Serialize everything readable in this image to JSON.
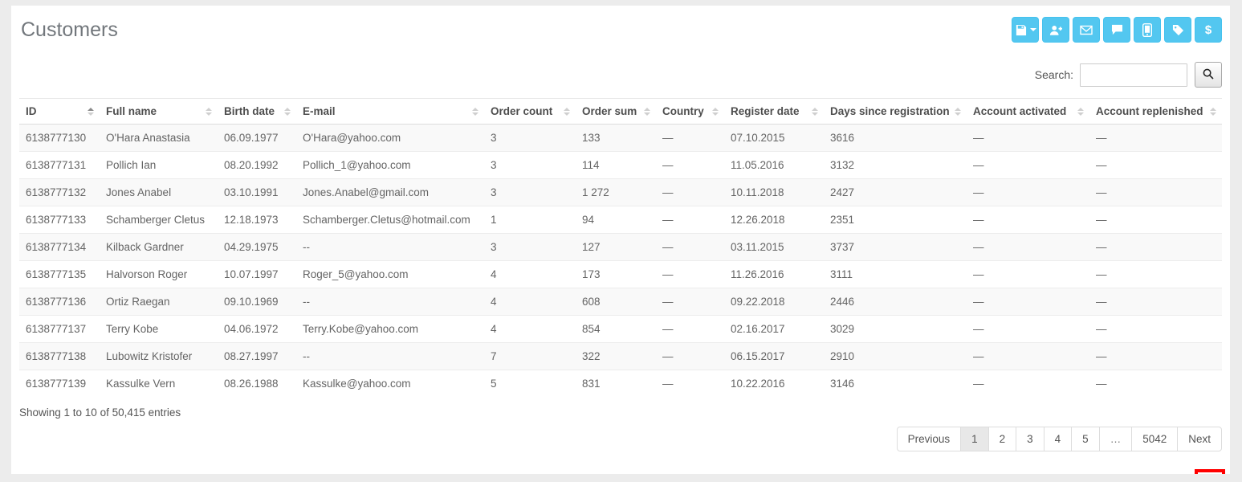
{
  "title": "Customers",
  "toolbar": {
    "accent_color": "#53c7f0",
    "dollar_glyph": "$",
    "buttons": [
      {
        "name": "export-save-button",
        "icon": "floppy-disk-icon",
        "has_caret": true
      },
      {
        "name": "add-user-button",
        "icon": "user-plus-icon"
      },
      {
        "name": "email-button",
        "icon": "envelope-icon"
      },
      {
        "name": "comment-button",
        "icon": "speech-bubble-icon"
      },
      {
        "name": "mobile-button",
        "icon": "mobile-phone-icon"
      },
      {
        "name": "tag-button",
        "icon": "tag-icon"
      },
      {
        "name": "dollar-button",
        "icon": "dollar-icon"
      }
    ]
  },
  "search": {
    "label": "Search:",
    "value": "",
    "placeholder": ""
  },
  "table": {
    "columns": [
      {
        "label": "ID",
        "sort": "asc"
      },
      {
        "label": "Full name",
        "sort": "none"
      },
      {
        "label": "Birth date",
        "sort": "none"
      },
      {
        "label": "E-mail",
        "sort": "none"
      },
      {
        "label": "Order count",
        "sort": "none"
      },
      {
        "label": "Order sum",
        "sort": "none"
      },
      {
        "label": "Country",
        "sort": "none"
      },
      {
        "label": "Register date",
        "sort": "none"
      },
      {
        "label": "Days since registration",
        "sort": "none"
      },
      {
        "label": "Account activated",
        "sort": "none"
      },
      {
        "label": "Account replenished",
        "sort": "none"
      }
    ],
    "rows": [
      [
        "6138777130",
        "O'Hara Anastasia",
        "06.09.1977",
        "O'Hara@yahoo.com",
        "3",
        "133",
        "—",
        "07.10.2015",
        "3616",
        "—",
        "—"
      ],
      [
        "6138777131",
        "Pollich Ian",
        "08.20.1992",
        "Pollich_1@yahoo.com",
        "3",
        "114",
        "—",
        "11.05.2016",
        "3132",
        "—",
        "—"
      ],
      [
        "6138777132",
        "Jones Anabel",
        "03.10.1991",
        "Jones.Anabel@gmail.com",
        "3",
        "1 272",
        "—",
        "10.11.2018",
        "2427",
        "—",
        "—"
      ],
      [
        "6138777133",
        "Schamberger Cletus",
        "12.18.1973",
        "Schamberger.Cletus@hotmail.com",
        "1",
        "94",
        "—",
        "12.26.2018",
        "2351",
        "—",
        "—"
      ],
      [
        "6138777134",
        "Kilback Gardner",
        "04.29.1975",
        "--",
        "3",
        "127",
        "—",
        "03.11.2015",
        "3737",
        "—",
        "—"
      ],
      [
        "6138777135",
        "Halvorson Roger",
        "10.07.1997",
        "Roger_5@yahoo.com",
        "4",
        "173",
        "—",
        "11.26.2016",
        "3111",
        "—",
        "—"
      ],
      [
        "6138777136",
        "Ortiz Raegan",
        "09.10.1969",
        "--",
        "4",
        "608",
        "—",
        "09.22.2018",
        "2446",
        "—",
        "—"
      ],
      [
        "6138777137",
        "Terry Kobe",
        "04.06.1972",
        "Terry.Kobe@yahoo.com",
        "4",
        "854",
        "—",
        "02.16.2017",
        "3029",
        "—",
        "—"
      ],
      [
        "6138777138",
        "Lubowitz Kristofer",
        "08.27.1997",
        "--",
        "7",
        "322",
        "—",
        "06.15.2017",
        "2910",
        "—",
        "—"
      ],
      [
        "6138777139",
        "Kassulke Vern",
        "08.26.1988",
        "Kassulke@yahoo.com",
        "5",
        "831",
        "—",
        "10.22.2016",
        "3146",
        "—",
        "—"
      ]
    ],
    "info": "Showing 1 to 10 of 50,415 entries"
  },
  "pagination": {
    "items": [
      {
        "label": "Previous",
        "type": "nav"
      },
      {
        "label": "1",
        "type": "page",
        "active": true
      },
      {
        "label": "2",
        "type": "page"
      },
      {
        "label": "3",
        "type": "page"
      },
      {
        "label": "4",
        "type": "page"
      },
      {
        "label": "5",
        "type": "page"
      },
      {
        "label": "…",
        "type": "ellipsis"
      },
      {
        "label": "5042",
        "type": "page"
      },
      {
        "label": "Next",
        "type": "nav"
      }
    ]
  },
  "settings": {
    "gear_glyph": "⚙",
    "gear_color": "#337ab7",
    "highlight_color": "#ff0000"
  }
}
